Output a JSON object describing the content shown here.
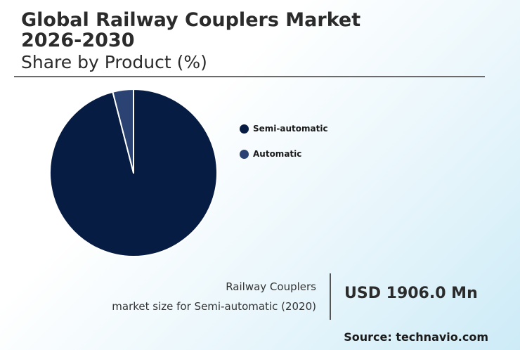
{
  "header": {
    "title": "Global Railway Couplers Market 2026-2030",
    "subtitle": "Share by Product (%)"
  },
  "chart_data": {
    "type": "pie",
    "categories": [
      "Semi-automatic",
      "Automatic"
    ],
    "values": [
      96,
      4
    ],
    "colors": [
      "#061c43",
      "#2a4372"
    ],
    "legend_position": "right"
  },
  "stat": {
    "line1": "Railway Couplers",
    "line2": "market size for Semi-automatic (2020)",
    "value": "USD 1906.0 Mn"
  },
  "footer": {
    "source": "Source: technavio.com"
  }
}
